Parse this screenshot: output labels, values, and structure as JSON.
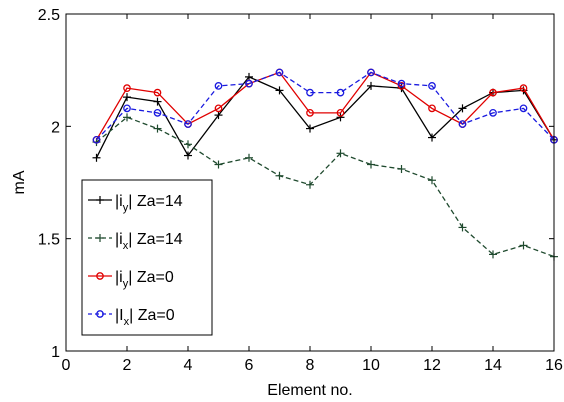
{
  "chart_data": {
    "type": "line",
    "xlabel": "Element no.",
    "ylabel": "mA",
    "xlim": [
      0,
      16
    ],
    "ylim": [
      1,
      2.5
    ],
    "xticks": [
      0,
      2,
      4,
      6,
      8,
      10,
      12,
      14,
      16
    ],
    "xtick_labels": [
      "0",
      "2",
      "4",
      "6",
      "8",
      "10",
      "12",
      "14",
      "16"
    ],
    "yticks": [
      1,
      1.5,
      2,
      2.5
    ],
    "ytick_labels": [
      "1",
      "1.5",
      "2",
      "2.5"
    ],
    "grid": false,
    "legend_position": "lower-left",
    "x": [
      1,
      2,
      3,
      4,
      5,
      6,
      7,
      8,
      9,
      10,
      11,
      12,
      13,
      14,
      15,
      16
    ],
    "series": [
      {
        "name": "|i_y| Za=14",
        "legend_main": "|i",
        "legend_sub": "y",
        "legend_rest": "| Za=14",
        "color": "#000000",
        "dash": "solid",
        "marker": "plus",
        "values": [
          1.86,
          2.13,
          2.11,
          1.87,
          2.05,
          2.22,
          2.16,
          1.99,
          2.04,
          2.18,
          2.17,
          1.95,
          2.08,
          2.15,
          2.16,
          1.94
        ]
      },
      {
        "name": "|i_x| Za=14",
        "legend_main": "|i",
        "legend_sub": "x",
        "legend_rest": "| Za=14",
        "color": "#1f4a2e",
        "dash": "dashed",
        "marker": "plus",
        "values": [
          1.93,
          2.04,
          1.99,
          1.92,
          1.83,
          1.86,
          1.78,
          1.74,
          1.88,
          1.83,
          1.81,
          1.76,
          1.55,
          1.43,
          1.47,
          1.42
        ]
      },
      {
        "name": "|i_y| Za=0",
        "legend_main": "|i",
        "legend_sub": "y",
        "legend_rest": "| Za=0",
        "color": "#e00000",
        "dash": "solid",
        "marker": "circle",
        "values": [
          1.94,
          2.17,
          2.15,
          2.01,
          2.08,
          2.19,
          2.24,
          2.06,
          2.06,
          2.24,
          2.18,
          2.08,
          2.01,
          2.15,
          2.17,
          1.94
        ]
      },
      {
        "name": "|I_x| Za=0",
        "legend_main": "|I",
        "legend_sub": "x",
        "legend_rest": "| Za=0",
        "color": "#1a1adf",
        "dash": "dashed",
        "marker": "circle",
        "values": [
          1.94,
          2.08,
          2.06,
          2.01,
          2.18,
          2.19,
          2.24,
          2.15,
          2.15,
          2.24,
          2.19,
          2.18,
          2.01,
          2.06,
          2.08,
          1.94
        ]
      }
    ]
  }
}
